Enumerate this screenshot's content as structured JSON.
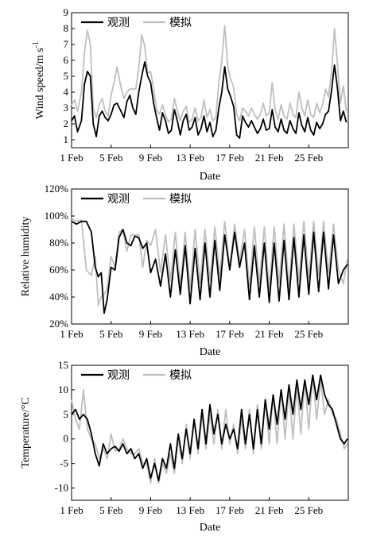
{
  "chart_data": [
    {
      "type": "line",
      "ylabel": "Wind speed/m s",
      "ylabel_sup": "-1",
      "xlabel": "Date",
      "ylim": [
        0.5,
        9
      ],
      "yticks": [
        "1",
        "2",
        "3",
        "4",
        "5",
        "6",
        "7",
        "8",
        "9"
      ],
      "xticks": [
        "1 Feb",
        "5 Feb",
        "9 Feb",
        "13 Feb",
        "17 Feb",
        "21 Feb",
        "25 Feb"
      ],
      "xrange_days": [
        1,
        29
      ],
      "series": [
        {
          "name": "观测",
          "color": "#000000",
          "x": [
            1,
            1.3,
            1.6,
            2,
            2.3,
            2.6,
            2.9,
            3.2,
            3.5,
            3.8,
            4.1,
            4.4,
            4.7,
            5,
            5.3,
            5.6,
            6,
            6.3,
            6.6,
            6.9,
            7.2,
            7.5,
            7.8,
            8.1,
            8.4,
            8.7,
            9,
            9.3,
            9.6,
            9.9,
            10.2,
            10.5,
            10.8,
            11.1,
            11.4,
            11.7,
            12,
            12.3,
            12.6,
            12.9,
            13.2,
            13.5,
            13.8,
            14.1,
            14.4,
            14.7,
            15,
            15.3,
            15.6,
            15.9,
            16.2,
            16.5,
            16.8,
            17.1,
            17.4,
            17.7,
            18,
            18.3,
            18.6,
            18.9,
            19.2,
            19.5,
            19.8,
            20.1,
            20.4,
            20.7,
            21,
            21.3,
            21.6,
            21.9,
            22.2,
            22.5,
            22.8,
            23.1,
            23.4,
            23.7,
            24,
            24.3,
            24.6,
            24.9,
            25.2,
            25.5,
            25.8,
            26.1,
            26.4,
            26.7,
            27,
            27.3,
            27.6,
            27.9,
            28.2,
            28.5,
            28.8
          ],
          "y": [
            2.2,
            2.5,
            1.5,
            2.2,
            4.5,
            5.3,
            5,
            2,
            1.2,
            2.5,
            2.8,
            2.4,
            2.2,
            2.6,
            3.2,
            3.3,
            2.8,
            2.4,
            3.4,
            3.8,
            3,
            2.6,
            4,
            5,
            5.9,
            5,
            4.6,
            3.3,
            2.4,
            1.6,
            2.7,
            2.2,
            1.4,
            1.6,
            2.9,
            2.2,
            1.3,
            2.2,
            2.6,
            1.6,
            1.8,
            2.4,
            1.3,
            1.7,
            2.5,
            1.5,
            2.1,
            1.2,
            1.6,
            3,
            4,
            5.6,
            4.2,
            3.7,
            3.1,
            1.3,
            1.1,
            2.5,
            2.1,
            1.8,
            2.2,
            1.8,
            1.4,
            1.7,
            2.3,
            1.6,
            1.7,
            2.9,
            1.8,
            1.5,
            2.3,
            1.6,
            1.4,
            2.2,
            1.7,
            1.4,
            2.7,
            1.9,
            1.5,
            2.4,
            1.6,
            1.3,
            2.1,
            1.7,
            2,
            2.6,
            2.8,
            4.1,
            5.7,
            4.3,
            2.2,
            2.8,
            2.1
          ]
        },
        {
          "name": "模拟",
          "color": "#bfbfbf",
          "x": [
            1,
            1.3,
            1.6,
            2,
            2.3,
            2.6,
            2.9,
            3.2,
            3.5,
            3.8,
            4.1,
            4.4,
            4.7,
            5,
            5.3,
            5.6,
            6,
            6.3,
            6.6,
            6.9,
            7.2,
            7.5,
            7.8,
            8.1,
            8.4,
            8.7,
            9,
            9.3,
            9.6,
            9.9,
            10.2,
            10.5,
            10.8,
            11.1,
            11.4,
            11.7,
            12,
            12.3,
            12.6,
            12.9,
            13.2,
            13.5,
            13.8,
            14.1,
            14.4,
            14.7,
            15,
            15.3,
            15.6,
            15.9,
            16.2,
            16.5,
            16.8,
            17.1,
            17.4,
            17.7,
            18,
            18.3,
            18.6,
            18.9,
            19.2,
            19.5,
            19.8,
            20.1,
            20.4,
            20.7,
            21,
            21.3,
            21.6,
            21.9,
            22.2,
            22.5,
            22.8,
            23.1,
            23.4,
            23.7,
            24,
            24.3,
            24.6,
            24.9,
            25.2,
            25.5,
            25.8,
            26.1,
            26.4,
            26.7,
            27,
            27.3,
            27.6,
            27.9,
            28.2,
            28.5,
            28.8
          ],
          "y": [
            3.2,
            3.5,
            2.8,
            4,
            6.5,
            7.9,
            7,
            3,
            2.4,
            3.2,
            3.6,
            2.8,
            2.5,
            3.8,
            4.6,
            5.6,
            4.3,
            3.6,
            4,
            4.2,
            4.2,
            4.2,
            5.5,
            7.6,
            6.9,
            5.2,
            5.3,
            4.2,
            2.9,
            2.6,
            3.2,
            2.6,
            2.1,
            2.3,
            3.6,
            2.8,
            2.2,
            2.8,
            3.1,
            2.1,
            2.3,
            3,
            2.2,
            2.4,
            3.5,
            2.4,
            2.9,
            2.2,
            2.4,
            4.6,
            6,
            8.2,
            5.6,
            4.8,
            4.3,
            2.6,
            2.2,
            3,
            2.8,
            2.5,
            3,
            2.6,
            2.3,
            2.6,
            3.3,
            2.5,
            2.7,
            4.6,
            2.9,
            2.3,
            3.2,
            2.5,
            2.3,
            3.3,
            2.6,
            2.4,
            4,
            3,
            2.5,
            3.5,
            2.6,
            2.4,
            3.3,
            2.7,
            3.2,
            4.2,
            3.7,
            5.2,
            8,
            5.8,
            3.3,
            4.4,
            2.8
          ]
        }
      ]
    },
    {
      "type": "line",
      "ylabel": "Relative humidity",
      "xlabel": "Date",
      "ylim": [
        20,
        120
      ],
      "yticks": [
        "20%",
        "40%",
        "60%",
        "80%",
        "100%",
        "120%"
      ],
      "xticks": [
        "1 Feb",
        "5 Feb",
        "9 Feb",
        "13 Feb",
        "17 Feb",
        "21 Feb",
        "25 Feb"
      ],
      "xrange_days": [
        1,
        29
      ],
      "series": [
        {
          "name": "观测",
          "color": "#000000",
          "x": [
            1,
            1.5,
            2,
            2.5,
            3,
            3.4,
            3.7,
            4,
            4.3,
            4.6,
            5,
            5.4,
            5.8,
            6.2,
            6.6,
            7,
            7.4,
            7.8,
            8.2,
            8.6,
            9,
            9.5,
            10,
            10.5,
            11,
            11.5,
            12,
            12.5,
            13,
            13.5,
            14,
            14.5,
            15,
            15.5,
            16,
            16.5,
            17,
            17.5,
            18,
            18.5,
            19,
            19.5,
            20,
            20.5,
            21,
            21.5,
            22,
            22.5,
            23,
            23.5,
            24,
            24.5,
            25,
            25.5,
            26,
            26.5,
            27,
            27.5,
            28,
            28.5,
            28.9
          ],
          "y": [
            96,
            94,
            96,
            96,
            88,
            62,
            55,
            58,
            28,
            38,
            62,
            60,
            84,
            90,
            80,
            78,
            85,
            84,
            76,
            80,
            58,
            68,
            48,
            72,
            40,
            75,
            42,
            78,
            35,
            76,
            38,
            80,
            40,
            82,
            45,
            86,
            60,
            88,
            62,
            80,
            38,
            78,
            40,
            80,
            36,
            80,
            37,
            82,
            38,
            84,
            40,
            86,
            42,
            88,
            44,
            88,
            46,
            86,
            50,
            60,
            64
          ]
        },
        {
          "name": "模拟",
          "color": "#bfbfbf",
          "x": [
            1,
            1.5,
            2,
            2.5,
            3,
            3.4,
            3.7,
            4,
            4.3,
            4.6,
            5,
            5.4,
            5.8,
            6.2,
            6.6,
            7,
            7.4,
            7.8,
            8.2,
            8.6,
            9,
            9.5,
            10,
            10.5,
            11,
            11.5,
            12,
            12.5,
            13,
            13.5,
            14,
            14.5,
            15,
            15.5,
            16,
            16.5,
            17,
            17.5,
            18,
            18.5,
            19,
            19.5,
            20,
            20.5,
            21,
            21.5,
            22,
            22.5,
            23,
            23.5,
            24,
            24.5,
            25,
            25.5,
            26,
            26.5,
            27,
            27.5,
            28,
            28.5,
            28.9
          ],
          "y": [
            98,
            96,
            97,
            60,
            56,
            70,
            34,
            40,
            42,
            46,
            70,
            62,
            88,
            90,
            74,
            86,
            86,
            86,
            62,
            82,
            78,
            90,
            58,
            86,
            52,
            88,
            48,
            88,
            46,
            90,
            50,
            90,
            52,
            92,
            56,
            96,
            62,
            94,
            66,
            90,
            48,
            92,
            50,
            92,
            46,
            92,
            50,
            94,
            48,
            94,
            52,
            96,
            54,
            96,
            56,
            96,
            58,
            94,
            60,
            50,
            68
          ]
        }
      ]
    },
    {
      "type": "line",
      "ylabel": "Temperature/°C",
      "xlabel": "Date",
      "ylim": [
        -12.5,
        15
      ],
      "yticks": [
        "-10",
        "-5",
        "0",
        "5",
        "10",
        "15"
      ],
      "xticks": [
        "1 Feb",
        "5 Feb",
        "9 Feb",
        "13 Feb",
        "17 Feb",
        "21 Feb",
        "25 Feb"
      ],
      "xrange_days": [
        1,
        29
      ],
      "series": [
        {
          "name": "观测",
          "color": "#000000",
          "x": [
            1,
            1.4,
            1.8,
            2.2,
            2.6,
            3,
            3.4,
            3.8,
            4.2,
            4.6,
            5,
            5.4,
            5.8,
            6.2,
            6.6,
            7,
            7.4,
            7.8,
            8.2,
            8.6,
            9,
            9.4,
            9.8,
            10.2,
            10.6,
            11,
            11.4,
            11.8,
            12.2,
            12.6,
            13,
            13.4,
            13.8,
            14.2,
            14.6,
            15,
            15.4,
            15.8,
            16.2,
            16.6,
            17,
            17.4,
            17.8,
            18.2,
            18.6,
            19,
            19.4,
            19.8,
            20.2,
            20.6,
            21,
            21.4,
            21.8,
            22.2,
            22.6,
            23,
            23.4,
            23.8,
            24.2,
            24.6,
            25,
            25.4,
            25.8,
            26.2,
            26.6,
            27,
            27.4,
            27.8,
            28.2,
            28.6,
            28.9
          ],
          "y": [
            5,
            6,
            4,
            5,
            4,
            1,
            -3,
            -5.5,
            -1,
            -3,
            -2,
            -1.5,
            -2.5,
            -1,
            -3,
            -2,
            -4,
            -3,
            -6,
            -4,
            -8,
            -5,
            -8.5,
            -4,
            -6,
            -1,
            -6,
            1,
            -4,
            2,
            -3,
            4,
            -2,
            6,
            -1,
            7,
            1,
            5,
            -1,
            3,
            0,
            2,
            -2,
            6,
            -1,
            5,
            -2,
            6,
            -1,
            8,
            2,
            9,
            3,
            10,
            4,
            11,
            5,
            12,
            6,
            12,
            7,
            13,
            8,
            13,
            9,
            7,
            6,
            3,
            0,
            -1,
            0
          ]
        },
        {
          "name": "模拟",
          "color": "#bfbfbf",
          "x": [
            1,
            1.4,
            1.8,
            2.2,
            2.6,
            3,
            3.4,
            3.8,
            4.2,
            4.6,
            5,
            5.4,
            5.8,
            6.2,
            6.6,
            7,
            7.4,
            7.8,
            8.2,
            8.6,
            9,
            9.4,
            9.8,
            10.2,
            10.6,
            11,
            11.4,
            11.8,
            12.2,
            12.6,
            13,
            13.4,
            13.8,
            14.2,
            14.6,
            15,
            15.4,
            15.8,
            16.2,
            16.6,
            17,
            17.4,
            17.8,
            18.2,
            18.6,
            19,
            19.4,
            19.8,
            20.2,
            20.6,
            21,
            21.4,
            21.8,
            22.2,
            22.6,
            23,
            23.4,
            23.8,
            24.2,
            24.6,
            25,
            25.4,
            25.8,
            26.2,
            26.6,
            27,
            27.4,
            27.8,
            28.2,
            28.6,
            28.9
          ],
          "y": [
            8,
            4,
            2,
            10,
            2,
            0,
            -1,
            -4,
            -2,
            -4,
            1,
            -2.5,
            -2,
            0,
            -2,
            -3,
            -3,
            -2,
            -5,
            -5,
            -9,
            -4,
            -9,
            -5,
            -7,
            -3,
            -7,
            0,
            -5,
            3,
            -4,
            4,
            -3,
            5,
            -2,
            5,
            -1,
            6,
            -2,
            6,
            -1,
            3,
            -3,
            4,
            -2,
            6,
            -3,
            7,
            -2,
            8,
            -1,
            9,
            -1,
            10,
            0,
            10,
            0,
            11,
            1,
            12,
            2,
            13,
            4,
            12,
            5,
            8,
            5,
            4,
            1,
            -2,
            -1
          ]
        }
      ]
    }
  ]
}
